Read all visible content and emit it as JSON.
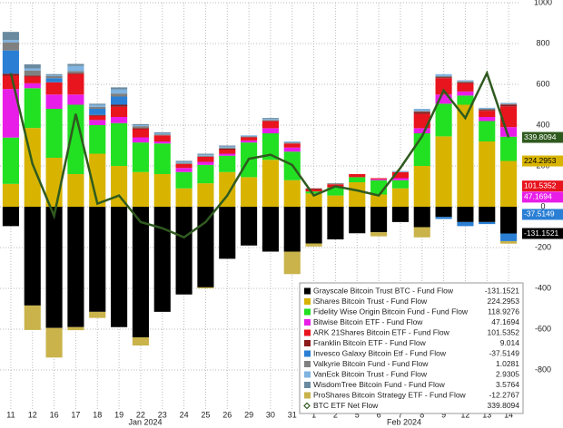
{
  "chart_data": {
    "type": "bar",
    "stacked": true,
    "categories": [
      "11",
      "12",
      "16",
      "17",
      "18",
      "19",
      "22",
      "23",
      "24",
      "25",
      "26",
      "29",
      "30",
      "31",
      "1",
      "2",
      "5",
      "6",
      "7",
      "8",
      "9",
      "12",
      "13",
      "14"
    ],
    "ylim": [
      -1000,
      1000
    ],
    "yticks": [
      -800,
      -600,
      -400,
      -200,
      0,
      200,
      400,
      600,
      800,
      1000
    ],
    "grid": true,
    "legend": "lower-right",
    "series": [
      {
        "name": "Grayscale Bitcoin Trust BTC - Fund Flow",
        "color": "#000000",
        "tag": true,
        "values": [
          -95,
          -484,
          -594,
          -590,
          -515,
          -590,
          -640,
          -515,
          -430,
          -395,
          -255,
          -190,
          -220,
          -220,
          -180,
          -160,
          -130,
          -125,
          -75,
          -100,
          -50,
          -75,
          -75,
          -131.1521
        ],
        "value_labels": [
          null,
          null,
          null,
          null,
          null,
          null,
          null,
          null,
          null,
          null,
          null,
          null,
          null,
          null,
          null,
          null,
          null,
          null,
          null,
          null,
          null,
          null,
          null,
          "-131.1521"
        ]
      },
      {
        "name": "iShares Bitcoin Trust - Fund Flow",
        "color": "#d8b400",
        "tag": true,
        "values": [
          112,
          386,
          240,
          160,
          260,
          200,
          170,
          160,
          90,
          115,
          170,
          145,
          230,
          130,
          65,
          55,
          120,
          60,
          90,
          200,
          345,
          500,
          320,
          224.2953
        ],
        "value_labels": [
          null,
          null,
          null,
          null,
          null,
          null,
          null,
          null,
          null,
          null,
          null,
          null,
          null,
          null,
          null,
          null,
          null,
          null,
          null,
          null,
          null,
          null,
          null,
          "224.2953"
        ]
      },
      {
        "name": "Fidelity Wise Origin Bitcoin Fund - Fund Flow",
        "color": "#22e022",
        "values": [
          227,
          195,
          240,
          340,
          140,
          210,
          145,
          150,
          80,
          90,
          80,
          170,
          130,
          140,
          10,
          40,
          25,
          70,
          40,
          160,
          160,
          45,
          100,
          118.9276
        ],
        "value_labels": [
          null,
          null,
          null,
          null,
          null,
          null,
          null,
          null,
          null,
          null,
          null,
          null,
          null,
          null,
          null,
          null,
          null,
          null,
          null,
          null,
          null,
          null,
          null,
          "118.9276"
        ]
      },
      {
        "name": "Bitwise Bitcoin ETF - Fund Flow",
        "color": "#e81ee8",
        "tag": true,
        "values": [
          238,
          24,
          70,
          50,
          25,
          30,
          25,
          10,
          20,
          15,
          10,
          10,
          25,
          20,
          0,
          0,
          0,
          5,
          10,
          25,
          45,
          20,
          20,
          47.1694
        ],
        "value_labels": [
          null,
          null,
          null,
          null,
          null,
          null,
          null,
          null,
          null,
          null,
          null,
          null,
          null,
          null,
          null,
          null,
          null,
          null,
          null,
          null,
          null,
          null,
          null,
          "47.1694"
        ]
      },
      {
        "name": "ARK 21Shares Bitcoin ETF - Fund Flow",
        "color": "#e8141e",
        "tag": true,
        "values": [
          65,
          33,
          60,
          100,
          20,
          50,
          40,
          30,
          20,
          25,
          20,
          15,
          35,
          20,
          10,
          15,
          15,
          5,
          30,
          70,
          80,
          40,
          30,
          101.5352
        ],
        "value_labels": [
          null,
          null,
          null,
          null,
          null,
          null,
          null,
          null,
          null,
          null,
          null,
          null,
          null,
          null,
          null,
          null,
          null,
          null,
          null,
          null,
          null,
          null,
          null,
          "101.5352"
        ]
      },
      {
        "name": "Franklin Bitcoin ETF - Fund Flow",
        "color": "#8b1a1a",
        "values": [
          10,
          5,
          0,
          5,
          5,
          10,
          5,
          0,
          0,
          0,
          5,
          0,
          0,
          0,
          5,
          0,
          0,
          0,
          0,
          10,
          5,
          5,
          5,
          9.014
        ]
      },
      {
        "name": "Invesco Galaxy Bitcoin Etf - Fund Flow",
        "color": "#2a7fd4",
        "tag": true,
        "values": [
          114,
          0,
          20,
          0,
          30,
          40,
          0,
          0,
          0,
          0,
          0,
          0,
          0,
          0,
          0,
          0,
          0,
          0,
          0,
          0,
          -10,
          -20,
          -10,
          -37.5149
        ],
        "value_labels": [
          null,
          null,
          null,
          null,
          null,
          null,
          null,
          null,
          null,
          null,
          null,
          null,
          null,
          null,
          null,
          null,
          null,
          null,
          null,
          null,
          null,
          null,
          null,
          "-37.5149"
        ]
      },
      {
        "name": "Valkyrie Bitcoin Fund - Fund Flow",
        "color": "#808080",
        "values": [
          40,
          25,
          10,
          10,
          10,
          15,
          10,
          5,
          5,
          5,
          5,
          5,
          5,
          5,
          0,
          5,
          0,
          0,
          0,
          5,
          5,
          5,
          5,
          1.0281
        ]
      },
      {
        "name": "VanEck Bitcoin Trust - Fund Flow",
        "color": "#7fb3e0",
        "values": [
          11,
          10,
          5,
          25,
          10,
          20,
          5,
          5,
          5,
          5,
          5,
          5,
          5,
          5,
          0,
          0,
          0,
          0,
          5,
          10,
          10,
          5,
          5,
          2.9305
        ]
      },
      {
        "name": "WisdomTree Bitcoin Fund - Fund Flow",
        "color": "#6a8aa0",
        "values": [
          40,
          20,
          5,
          10,
          5,
          10,
          5,
          5,
          5,
          5,
          5,
          0,
          5,
          0,
          0,
          0,
          0,
          0,
          0,
          0,
          0,
          0,
          0,
          3.5764
        ]
      },
      {
        "name": "ProShares Bitcoin Strategy ETF - Fund Flow",
        "color": "#c9b34a",
        "values": [
          0,
          -120,
          -145,
          -15,
          -30,
          0,
          -40,
          0,
          0,
          -5,
          0,
          0,
          0,
          -110,
          -15,
          0,
          0,
          -20,
          0,
          -50,
          0,
          0,
          0,
          -12.2767
        ]
      },
      {
        "name": "BTC ETF Net Flow",
        "color": "#2f5a1f",
        "type": "line",
        "tag": true,
        "values": [
          655,
          210,
          -45,
          455,
          15,
          55,
          -75,
          -105,
          -150,
          -75,
          55,
          235,
          255,
          205,
          55,
          100,
          80,
          55,
          190,
          345,
          570,
          435,
          655,
          339.8094
        ],
        "value_labels": [
          null,
          null,
          null,
          null,
          null,
          null,
          null,
          null,
          null,
          null,
          null,
          null,
          null,
          null,
          null,
          null,
          null,
          null,
          null,
          null,
          null,
          null,
          null,
          "339.8094"
        ]
      }
    ],
    "months": [
      "Jan 2024",
      "Feb 2024"
    ]
  }
}
